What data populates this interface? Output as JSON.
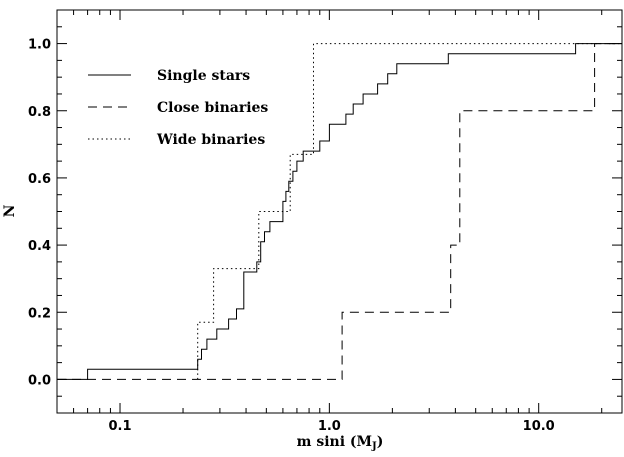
{
  "chart_data": {
    "type": "line",
    "step": true,
    "xlabel": "m sini (M",
    "xlabel_sub": "J",
    "xlabel_close": ")",
    "ylabel": "N",
    "xscale": "log",
    "xlim": [
      0.05,
      25
    ],
    "ylim": [
      -0.1,
      1.1
    ],
    "x_ticks": [
      {
        "value": 0.1,
        "label": "0.1"
      },
      {
        "value": 1.0,
        "label": "1.0"
      },
      {
        "value": 10.0,
        "label": "10.0"
      }
    ],
    "y_ticks": [
      {
        "value": 0.0,
        "label": "0.0"
      },
      {
        "value": 0.2,
        "label": "0.2"
      },
      {
        "value": 0.4,
        "label": "0.4"
      },
      {
        "value": 0.6,
        "label": "0.6"
      },
      {
        "value": 0.8,
        "label": "0.8"
      },
      {
        "value": 1.0,
        "label": "1.0"
      }
    ],
    "legend_placement": "top-left",
    "grid": false,
    "series": [
      {
        "name": "Single stars",
        "style": "solid",
        "x_start": 0.05,
        "x_end": 25,
        "steps": [
          [
            0.07,
            0.03
          ],
          [
            0.235,
            0.06
          ],
          [
            0.245,
            0.09
          ],
          [
            0.26,
            0.12
          ],
          [
            0.29,
            0.15
          ],
          [
            0.33,
            0.18
          ],
          [
            0.36,
            0.21
          ],
          [
            0.39,
            0.32
          ],
          [
            0.45,
            0.35
          ],
          [
            0.47,
            0.41
          ],
          [
            0.49,
            0.44
          ],
          [
            0.52,
            0.47
          ],
          [
            0.6,
            0.53
          ],
          [
            0.62,
            0.56
          ],
          [
            0.64,
            0.59
          ],
          [
            0.67,
            0.62
          ],
          [
            0.7,
            0.65
          ],
          [
            0.75,
            0.68
          ],
          [
            0.9,
            0.71
          ],
          [
            1.0,
            0.76
          ],
          [
            1.2,
            0.79
          ],
          [
            1.3,
            0.82
          ],
          [
            1.45,
            0.85
          ],
          [
            1.7,
            0.88
          ],
          [
            1.9,
            0.91
          ],
          [
            2.1,
            0.94
          ],
          [
            3.7,
            0.97
          ],
          [
            15.0,
            1.0
          ]
        ]
      },
      {
        "name": "Close binaries",
        "style": "dashed",
        "x_start": 0.05,
        "x_end": 25,
        "steps": [
          [
            1.15,
            0.2
          ],
          [
            3.8,
            0.4
          ],
          [
            4.2,
            0.8
          ],
          [
            18.5,
            1.0
          ]
        ]
      },
      {
        "name": "Wide binaries",
        "style": "dotted",
        "x_start": 0.235,
        "x_end": 25,
        "steps": [
          [
            0.235,
            0.17
          ],
          [
            0.28,
            0.33
          ],
          [
            0.46,
            0.5
          ],
          [
            0.65,
            0.67
          ],
          [
            0.84,
            1.0
          ]
        ]
      }
    ]
  }
}
